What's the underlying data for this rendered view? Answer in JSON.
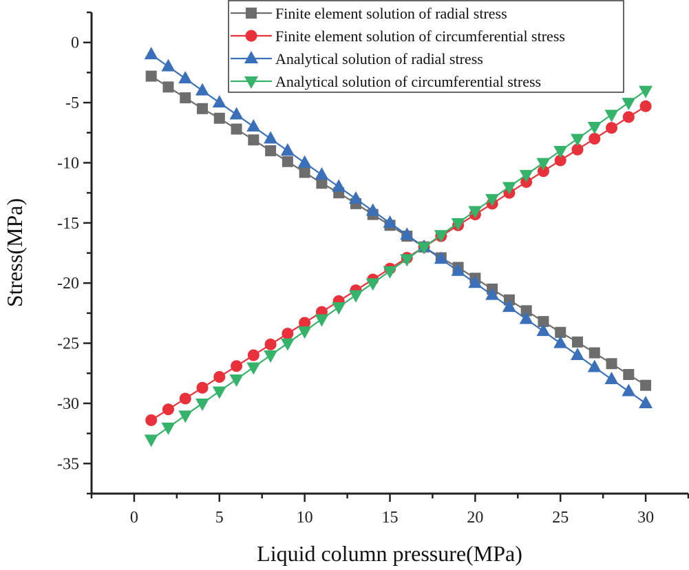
{
  "chart_data": {
    "type": "line",
    "title": "",
    "xlabel": "Liquid column pressure(MPa)",
    "ylabel": "Stress(MPa)",
    "xlim": [
      -2.5,
      32.5
    ],
    "ylim": [
      -37.5,
      2.5
    ],
    "xticks": [
      0,
      5,
      10,
      15,
      20,
      25,
      30
    ],
    "yticks": [
      0,
      -5,
      -10,
      -15,
      -20,
      -25,
      -30,
      -35
    ],
    "grid": false,
    "legend_position": "top-right",
    "x": [
      1,
      2,
      3,
      4,
      5,
      6,
      7,
      8,
      9,
      10,
      11,
      12,
      13,
      14,
      15,
      16,
      17,
      18,
      19,
      20,
      21,
      22,
      23,
      24,
      25,
      26,
      27,
      28,
      29,
      30
    ],
    "series": [
      {
        "name": "Finite element solution of radial stress",
        "color": "#6d6d6d",
        "marker": "square",
        "values": [
          -2.8,
          -3.7,
          -4.6,
          -5.5,
          -6.3,
          -7.2,
          -8.1,
          -9.0,
          -9.9,
          -10.8,
          -11.7,
          -12.5,
          -13.4,
          -14.3,
          -15.2,
          -16.1,
          -17.0,
          -17.9,
          -18.7,
          -19.6,
          -20.5,
          -21.4,
          -22.3,
          -23.2,
          -24.1,
          -24.9,
          -25.8,
          -26.7,
          -27.6,
          -28.5
        ]
      },
      {
        "name": "Finite element solution of circumferential stress",
        "color": "#e8313a",
        "marker": "circle",
        "values": [
          -31.4,
          -30.5,
          -29.6,
          -28.7,
          -27.8,
          -26.9,
          -26.0,
          -25.1,
          -24.2,
          -23.3,
          -22.4,
          -21.5,
          -20.6,
          -19.7,
          -18.8,
          -17.9,
          -17.0,
          -16.1,
          -15.2,
          -14.3,
          -13.4,
          -12.5,
          -11.6,
          -10.7,
          -9.8,
          -8.9,
          -8.0,
          -7.1,
          -6.2,
          -5.3
        ]
      },
      {
        "name": "Analytical solution of radial stress",
        "color": "#3a6fba",
        "marker": "triangle-up",
        "values": [
          -1,
          -2,
          -3,
          -4,
          -5,
          -6,
          -7,
          -8,
          -9,
          -10,
          -11,
          -12,
          -13,
          -14,
          -15,
          -16,
          -17,
          -18,
          -19,
          -20,
          -21,
          -22,
          -23,
          -24,
          -25,
          -26,
          -27,
          -28,
          -29,
          -30
        ]
      },
      {
        "name": "Analytical solution of circumferential stress",
        "color": "#36b36a",
        "marker": "triangle-down",
        "values": [
          -33,
          -32,
          -31,
          -30,
          -29,
          -28,
          -27,
          -26,
          -25,
          -24,
          -23,
          -22,
          -21,
          -20,
          -19,
          -18,
          -17,
          -16,
          -15,
          -14,
          -13,
          -12,
          -11,
          -10,
          -9,
          -8,
          -7,
          -6,
          -5,
          -4
        ]
      }
    ]
  }
}
